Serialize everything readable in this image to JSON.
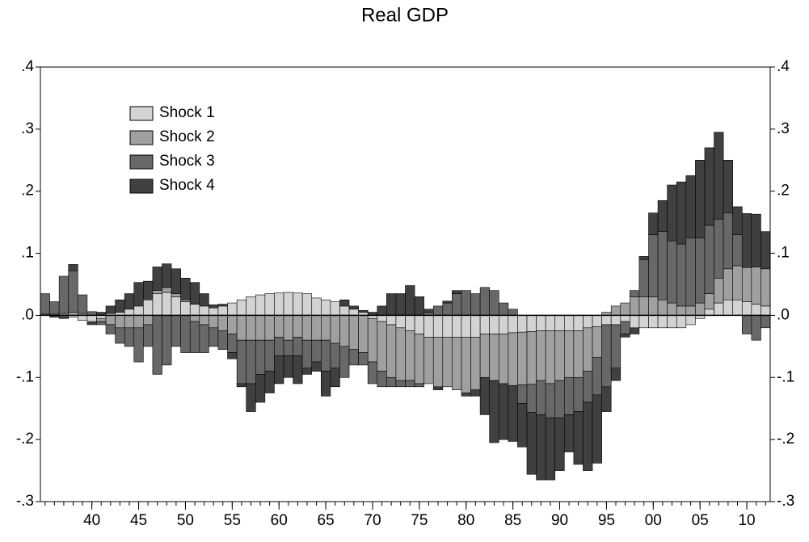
{
  "chart_data": {
    "type": "stacked_bar",
    "title": "Real GDP",
    "x": [
      1935,
      1936,
      1937,
      1938,
      1939,
      1940,
      1941,
      1942,
      1943,
      1944,
      1945,
      1946,
      1947,
      1948,
      1949,
      1950,
      1951,
      1952,
      1953,
      1954,
      1955,
      1956,
      1957,
      1958,
      1959,
      1960,
      1961,
      1962,
      1963,
      1964,
      1965,
      1966,
      1967,
      1968,
      1969,
      1970,
      1971,
      1972,
      1973,
      1974,
      1975,
      1976,
      1977,
      1978,
      1979,
      1980,
      1981,
      1982,
      1983,
      1984,
      1985,
      1986,
      1987,
      1988,
      1989,
      1990,
      1991,
      1992,
      1993,
      1994,
      1995,
      1996,
      1997,
      1998,
      1999,
      2000,
      2001,
      2002,
      2003,
      2004,
      2005,
      2006,
      2007,
      2008,
      2009,
      2010,
      2011,
      2012
    ],
    "series": [
      {
        "name": "Shock 1",
        "color": "#d3d3d3",
        "values": [
          0,
          0,
          -0.002,
          -0.003,
          -0.008,
          -0.01,
          -0.005,
          0.003,
          0.005,
          0.01,
          0.015,
          0.025,
          0.035,
          0.037,
          0.03,
          0.022,
          0.018,
          0.015,
          0.012,
          0.015,
          0.02,
          0.025,
          0.03,
          0.033,
          0.035,
          0.036,
          0.037,
          0.036,
          0.035,
          0.028,
          0.025,
          0.022,
          0.015,
          0.01,
          0.005,
          -0.005,
          -0.01,
          -0.015,
          -0.02,
          -0.025,
          -0.03,
          -0.035,
          -0.035,
          -0.035,
          -0.035,
          -0.035,
          -0.035,
          -0.03,
          -0.03,
          -0.03,
          -0.028,
          -0.027,
          -0.026,
          -0.025,
          -0.025,
          -0.025,
          -0.025,
          -0.025,
          -0.02,
          -0.018,
          -0.015,
          -0.015,
          -0.01,
          -0.02,
          -0.02,
          -0.02,
          -0.02,
          -0.02,
          -0.02,
          -0.015,
          -0.005,
          0.01,
          0.02,
          0.025,
          0.025,
          0.022,
          0.018,
          0.015
        ]
      },
      {
        "name": "Shock 2",
        "color": "#a0a0a0",
        "values": [
          0.002,
          0.002,
          0.003,
          0.005,
          0.003,
          -0.002,
          -0.005,
          -0.015,
          -0.02,
          -0.02,
          -0.02,
          -0.015,
          0.005,
          0.008,
          0.005,
          0.003,
          -0.01,
          -0.015,
          -0.02,
          -0.025,
          -0.03,
          -0.04,
          -0.04,
          -0.04,
          -0.04,
          -0.035,
          -0.04,
          -0.035,
          -0.04,
          -0.04,
          -0.04,
          -0.045,
          -0.05,
          -0.055,
          -0.06,
          -0.07,
          -0.08,
          -0.085,
          -0.085,
          -0.08,
          -0.08,
          -0.075,
          -0.08,
          -0.08,
          -0.085,
          -0.09,
          -0.085,
          -0.07,
          -0.075,
          -0.08,
          -0.085,
          -0.085,
          -0.085,
          -0.08,
          -0.085,
          -0.08,
          -0.075,
          -0.075,
          -0.07,
          -0.05,
          0.005,
          0.015,
          0.02,
          0.03,
          0.03,
          0.03,
          0.025,
          0.02,
          0.015,
          0.015,
          0.02,
          0.025,
          0.04,
          0.05,
          0.055,
          0.055,
          0.06,
          0.06
        ]
      },
      {
        "name": "Shock 3",
        "color": "#686868",
        "values": [
          0.033,
          0.02,
          0.06,
          0.067,
          0.03,
          0.006,
          -0.005,
          -0.015,
          -0.025,
          -0.03,
          -0.055,
          -0.035,
          -0.095,
          -0.08,
          -0.05,
          -0.06,
          -0.05,
          -0.045,
          -0.03,
          -0.03,
          -0.03,
          -0.07,
          -0.07,
          -0.055,
          -0.05,
          -0.03,
          -0.025,
          -0.03,
          -0.045,
          -0.035,
          -0.05,
          -0.04,
          -0.05,
          -0.025,
          -0.02,
          -0.035,
          -0.025,
          -0.015,
          -0.01,
          -0.01,
          -0.005,
          0.005,
          0.015,
          0.02,
          0.035,
          0.04,
          0.035,
          0.045,
          0.04,
          0.02,
          0.01,
          -0.03,
          -0.045,
          -0.055,
          -0.055,
          -0.06,
          -0.06,
          -0.055,
          -0.05,
          -0.06,
          -0.1,
          -0.07,
          -0.02,
          0.01,
          0.06,
          0.1,
          0.11,
          0.1,
          0.1,
          0.11,
          0.105,
          0.11,
          0.095,
          0.09,
          0.05,
          -0.03,
          -0.04,
          -0.02
        ]
      },
      {
        "name": "Shock 4",
        "color": "#404040",
        "values": [
          0,
          -0.003,
          -0.003,
          0.01,
          0,
          -0.003,
          0.005,
          0.012,
          0.02,
          0.025,
          0.038,
          0.03,
          0.038,
          0.038,
          0.04,
          0.035,
          0.035,
          0.02,
          0.005,
          0.003,
          -0.01,
          -0.005,
          -0.045,
          -0.045,
          -0.035,
          -0.045,
          -0.035,
          -0.045,
          -0.01,
          -0.015,
          -0.04,
          -0.03,
          0.01,
          0.005,
          0.003,
          0.005,
          0.015,
          0.035,
          0.035,
          0.048,
          0.03,
          0.005,
          -0.005,
          0.003,
          0.005,
          -0.005,
          -0.01,
          -0.06,
          -0.1,
          -0.09,
          -0.09,
          -0.07,
          -0.1,
          -0.105,
          -0.1,
          -0.085,
          -0.06,
          -0.085,
          -0.11,
          -0.11,
          -0.04,
          -0.02,
          -0.005,
          -0.01,
          0.005,
          0.035,
          0.05,
          0.09,
          0.1,
          0.1,
          0.125,
          0.125,
          0.14,
          0.085,
          0.045,
          0.087,
          0.085,
          0.06
        ]
      }
    ],
    "xlim": [
      1934.5,
      2012.5
    ],
    "xticks": [
      {
        "value": 1940,
        "label": "40"
      },
      {
        "value": 1945,
        "label": "45"
      },
      {
        "value": 1950,
        "label": "50"
      },
      {
        "value": 1955,
        "label": "55"
      },
      {
        "value": 1960,
        "label": "60"
      },
      {
        "value": 1965,
        "label": "65"
      },
      {
        "value": 1970,
        "label": "70"
      },
      {
        "value": 1975,
        "label": "75"
      },
      {
        "value": 1980,
        "label": "80"
      },
      {
        "value": 1985,
        "label": "85"
      },
      {
        "value": 1990,
        "label": "90"
      },
      {
        "value": 1995,
        "label": "95"
      },
      {
        "value": 2000,
        "label": "00"
      },
      {
        "value": 2005,
        "label": "05"
      },
      {
        "value": 2010,
        "label": "10"
      }
    ],
    "ylim": [
      -0.3,
      0.4
    ],
    "yticks": [
      {
        "value": -0.3,
        "label": "-.3"
      },
      {
        "value": -0.2,
        "label": "-.2"
      },
      {
        "value": -0.1,
        "label": "-.1"
      },
      {
        "value": 0,
        "label": ".0"
      },
      {
        "value": 0.1,
        "label": ".1"
      },
      {
        "value": 0.2,
        "label": ".2"
      },
      {
        "value": 0.3,
        "label": ".3"
      },
      {
        "value": 0.4,
        "label": ".4"
      }
    ],
    "legend": "upper left"
  }
}
